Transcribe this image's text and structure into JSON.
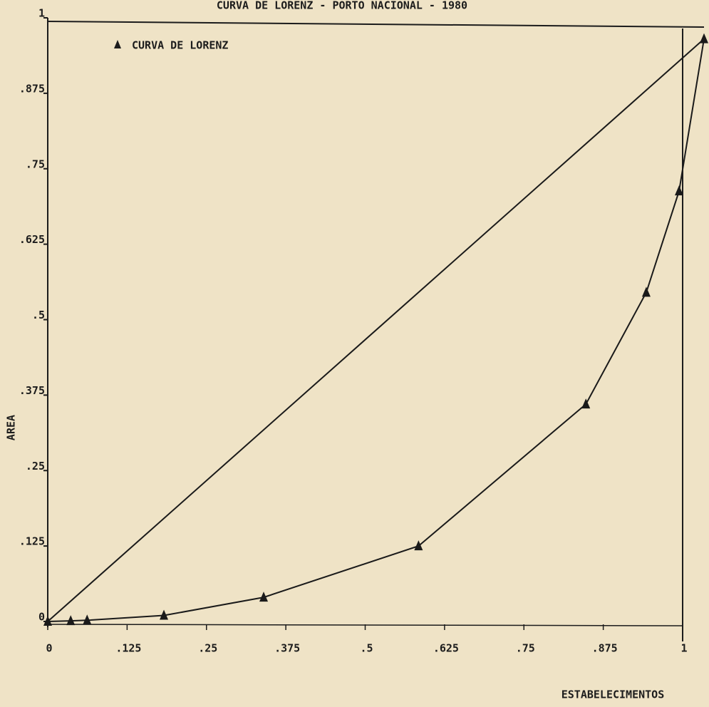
{
  "chart_data": {
    "type": "line",
    "title": "CURVA DE LORENZ - PORTO NACIONAL - 1980",
    "x_label": "ESTABELECIMENTOS",
    "y_label": "AREA",
    "xlim": [
      0,
      1
    ],
    "ylim": [
      0,
      1
    ],
    "xticks": [
      0,
      {
        "value": 0.125,
        "label": ".125"
      },
      {
        "value": 0.25,
        "label": ".25"
      },
      {
        "value": 0.375,
        "label": ".375"
      },
      {
        "value": 0.5,
        "label": ".5"
      },
      {
        "value": 0.625,
        "label": ".625"
      },
      {
        "value": 0.75,
        "label": ".75"
      },
      {
        "value": 0.875,
        "label": ".875"
      },
      1
    ],
    "yticks": [
      0,
      {
        "value": 0.125,
        "label": ".125"
      },
      {
        "value": 0.25,
        "label": ".25"
      },
      {
        "value": 0.375,
        "label": ".375"
      },
      {
        "value": 0.5,
        "label": ".5"
      },
      {
        "value": 0.625,
        "label": ".625"
      },
      {
        "value": 0.75,
        "label": ".75"
      },
      {
        "value": 0.875,
        "label": ".875"
      },
      1
    ],
    "series": [
      {
        "name": "CURVA DE LORENZ",
        "color": "#1a1a1a",
        "marker": "triangle",
        "x": [
          0,
          0.035,
          0.06,
          0.177,
          0.329,
          0.565,
          0.82,
          0.912,
          0.962,
          1
        ],
        "values": [
          0,
          0.001,
          0.002,
          0.01,
          0.04,
          0.125,
          0.36,
          0.545,
          0.713,
          0.965
        ]
      },
      {
        "color": "#1a1a1a",
        "x": [
          0,
          1
        ],
        "values": [
          0,
          0.965
        ]
      }
    ]
  }
}
